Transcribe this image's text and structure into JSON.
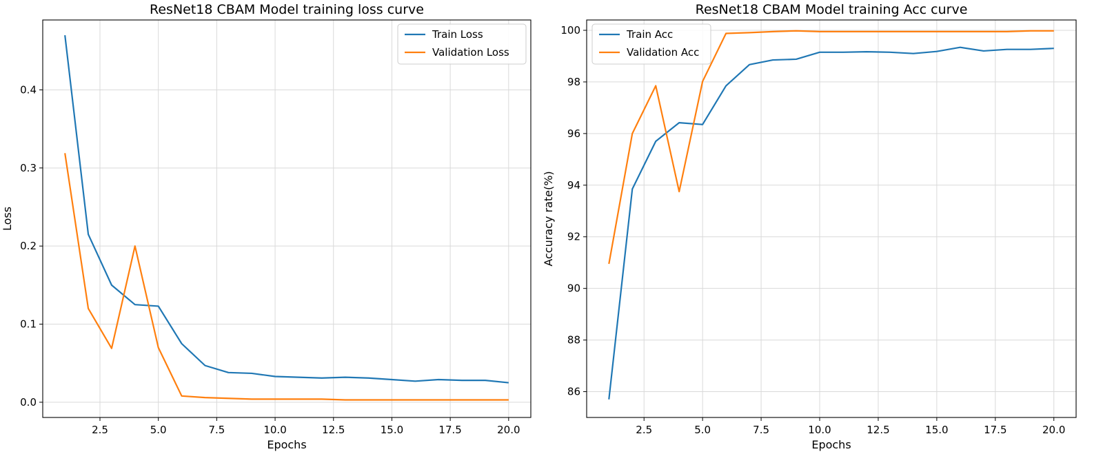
{
  "chart_data": [
    {
      "type": "line",
      "title": "ResNet18 CBAM Model training loss curve",
      "xlabel": "Epochs",
      "ylabel": "Loss",
      "xlim": [
        0.05,
        20.95
      ],
      "ylim": [
        -0.0195,
        0.4895
      ],
      "xticks": [
        2.5,
        5.0,
        7.5,
        10.0,
        12.5,
        15.0,
        17.5,
        20.0
      ],
      "xtick_labels": [
        "2.5",
        "5.0",
        "7.5",
        "10.0",
        "12.5",
        "15.0",
        "17.5",
        "20.0"
      ],
      "yticks": [
        0.0,
        0.1,
        0.2,
        0.3,
        0.4
      ],
      "ytick_labels": [
        "0.0",
        "0.1",
        "0.2",
        "0.3",
        "0.4"
      ],
      "grid": true,
      "legend_position": "top-right",
      "x": [
        1,
        2,
        3,
        4,
        5,
        6,
        7,
        8,
        9,
        10,
        11,
        12,
        13,
        14,
        15,
        16,
        17,
        18,
        19,
        20
      ],
      "series": [
        {
          "name": "Train Loss",
          "color": "#1f77b4",
          "values": [
            0.47,
            0.215,
            0.15,
            0.125,
            0.123,
            0.075,
            0.047,
            0.038,
            0.037,
            0.033,
            0.032,
            0.031,
            0.032,
            0.031,
            0.029,
            0.027,
            0.029,
            0.028,
            0.028,
            0.025
          ]
        },
        {
          "name": "Validation Loss",
          "color": "#ff7f0e",
          "values": [
            0.319,
            0.12,
            0.069,
            0.2,
            0.07,
            0.008,
            0.006,
            0.005,
            0.004,
            0.004,
            0.004,
            0.004,
            0.003,
            0.003,
            0.003,
            0.003,
            0.003,
            0.003,
            0.003,
            0.003
          ]
        }
      ]
    },
    {
      "type": "line",
      "title": "ResNet18 CBAM Model training Acc curve",
      "xlabel": "Epochs",
      "ylabel": "Accuracy rate(%)",
      "xlim": [
        0.05,
        20.95
      ],
      "ylim": [
        85.0,
        100.4
      ],
      "xticks": [
        2.5,
        5.0,
        7.5,
        10.0,
        12.5,
        15.0,
        17.5,
        20.0
      ],
      "xtick_labels": [
        "2.5",
        "5.0",
        "7.5",
        "10.0",
        "12.5",
        "15.0",
        "17.5",
        "20.0"
      ],
      "yticks": [
        86,
        88,
        90,
        92,
        94,
        96,
        98,
        100
      ],
      "ytick_labels": [
        "86",
        "88",
        "90",
        "92",
        "94",
        "96",
        "98",
        "100"
      ],
      "grid": true,
      "legend_position": "top-left",
      "x": [
        1,
        2,
        3,
        4,
        5,
        6,
        7,
        8,
        9,
        10,
        11,
        12,
        13,
        14,
        15,
        16,
        17,
        18,
        19,
        20
      ],
      "series": [
        {
          "name": "Train Acc",
          "color": "#1f77b4",
          "values": [
            85.7,
            93.85,
            95.7,
            96.42,
            96.35,
            97.85,
            98.67,
            98.85,
            98.88,
            99.15,
            99.15,
            99.17,
            99.15,
            99.1,
            99.18,
            99.34,
            99.2,
            99.26,
            99.26,
            99.3
          ]
        },
        {
          "name": "Validation Acc",
          "color": "#ff7f0e",
          "values": [
            90.95,
            96.0,
            97.85,
            93.75,
            98.02,
            99.88,
            99.91,
            99.95,
            99.98,
            99.95,
            99.95,
            99.95,
            99.95,
            99.95,
            99.95,
            99.95,
            99.95,
            99.95,
            99.98,
            99.98
          ]
        }
      ]
    }
  ]
}
